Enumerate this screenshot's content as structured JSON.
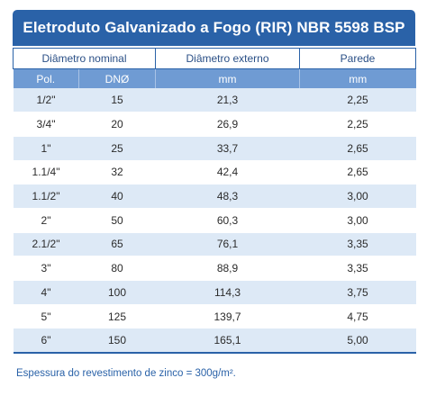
{
  "title": "Eletroduto Galvanizado a Fogo (RIR) NBR 5598 BSP",
  "headers": {
    "group1": "Diâmetro nominal",
    "group2": "Diâmetro externo",
    "group3": "Parede",
    "pol": "Pol.",
    "dn": "DNØ",
    "unit_ext": "mm",
    "unit_wall": "mm"
  },
  "rows": [
    {
      "pol": "1/2\"",
      "dn": "15",
      "ext": "21,3",
      "wall": "2,25"
    },
    {
      "pol": "3/4\"",
      "dn": "20",
      "ext": "26,9",
      "wall": "2,25"
    },
    {
      "pol": "1\"",
      "dn": "25",
      "ext": "33,7",
      "wall": "2,65"
    },
    {
      "pol": "1.1/4\"",
      "dn": "32",
      "ext": "42,4",
      "wall": "2,65"
    },
    {
      "pol": "1.1/2\"",
      "dn": "40",
      "ext": "48,3",
      "wall": "3,00"
    },
    {
      "pol": "2\"",
      "dn": "50",
      "ext": "60,3",
      "wall": "3,00"
    },
    {
      "pol": "2.1/2\"",
      "dn": "65",
      "ext": "76,1",
      "wall": "3,35"
    },
    {
      "pol": "3\"",
      "dn": "80",
      "ext": "88,9",
      "wall": "3,35"
    },
    {
      "pol": "4\"",
      "dn": "100",
      "ext": "114,3",
      "wall": "3,75"
    },
    {
      "pol": "5\"",
      "dn": "125",
      "ext": "139,7",
      "wall": "4,75"
    },
    {
      "pol": "6\"",
      "dn": "150",
      "ext": "165,1",
      "wall": "5,00"
    }
  ],
  "note": "Espessura do revestimento de zinco = 300g/m².",
  "colors": {
    "title_bg": "#2a62a8",
    "subheader_bg": "#6f9bd3",
    "stripe": "#dde9f6",
    "note_text": "#2a62a8"
  }
}
